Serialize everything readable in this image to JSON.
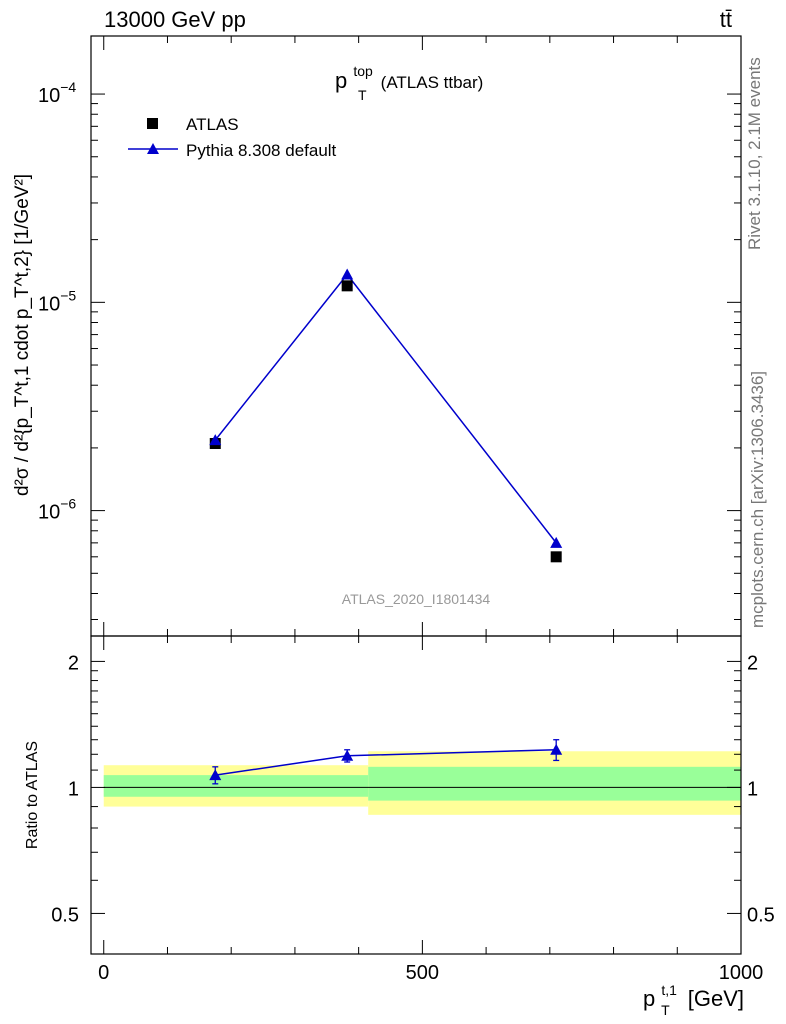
{
  "header": {
    "left_label": "13000 GeV pp",
    "right_label": "tt̄"
  },
  "main_panel": {
    "title_main": "p",
    "title_sup": "top",
    "title_sub": "T",
    "title_suffix": "(ATLAS ttbar)",
    "watermark": "ATLAS_2020_I1801434",
    "y_axis_label": "d²σ / d²{p_T^t,1 cdot p_T^t,2} [1/GeV²]",
    "y_ticks": [
      {
        "mant": "10",
        "exp": "−4",
        "value": 0.0001
      },
      {
        "mant": "10",
        "exp": "−5",
        "value": 1e-05
      },
      {
        "mant": "10",
        "exp": "−6",
        "value": 1e-06
      }
    ]
  },
  "legend": {
    "data_label": "ATLAS",
    "mc_label": "Pythia 8.308 default",
    "placement": "top-left"
  },
  "ratio_panel": {
    "y_axis_label": "Ratio to ATLAS",
    "y_ticks": [
      "0.5",
      "1",
      "2"
    ]
  },
  "x_axis": {
    "label_main": "p",
    "label_sup": "t,1",
    "label_sub": "T",
    "label_unit": "[GeV]",
    "ticks": [
      "0",
      "500",
      "1000"
    ]
  },
  "side_text": {
    "rivet": "Rivet 3.1.10,  2.1M events",
    "mcplots": "mcplots.cern.ch [arXiv:1306.3436]"
  },
  "colors": {
    "data": "#000000",
    "mc": "#0000cc",
    "band_inner": "#99ff99",
    "band_outer": "#ffff99",
    "side_text": "#777777"
  },
  "chart_data": {
    "type": "scatter",
    "x_scale": "linear",
    "y_scale": "log",
    "xlim": [
      -20,
      1000
    ],
    "ylim": [
      2.5e-07,
      0.00019
    ],
    "ratio_ylim": [
      0.4,
      2.3
    ],
    "series": [
      {
        "name": "ATLAS",
        "x": [
          175,
          382,
          710
        ],
        "y": [
          2.1e-06,
          1.2e-05,
          6e-07
        ],
        "bins": [
          [
            0,
            415
          ],
          [
            0,
            415
          ],
          [
            415,
            1000
          ]
        ]
      },
      {
        "name": "Pythia 8.308 default",
        "x": [
          175,
          382,
          710
        ],
        "y": [
          2.18e-06,
          1.36e-05,
          7e-07
        ],
        "ratio": [
          1.07,
          1.19,
          1.23
        ],
        "ratio_err": [
          0.05,
          0.04,
          0.07
        ]
      }
    ],
    "ratio_bands": [
      {
        "x": [
          0,
          415
        ],
        "inner": [
          0.95,
          1.07
        ],
        "outer": [
          0.9,
          1.13
        ]
      },
      {
        "x": [
          415,
          1000
        ],
        "inner": [
          0.93,
          1.12
        ],
        "outer": [
          0.86,
          1.22
        ]
      }
    ]
  }
}
